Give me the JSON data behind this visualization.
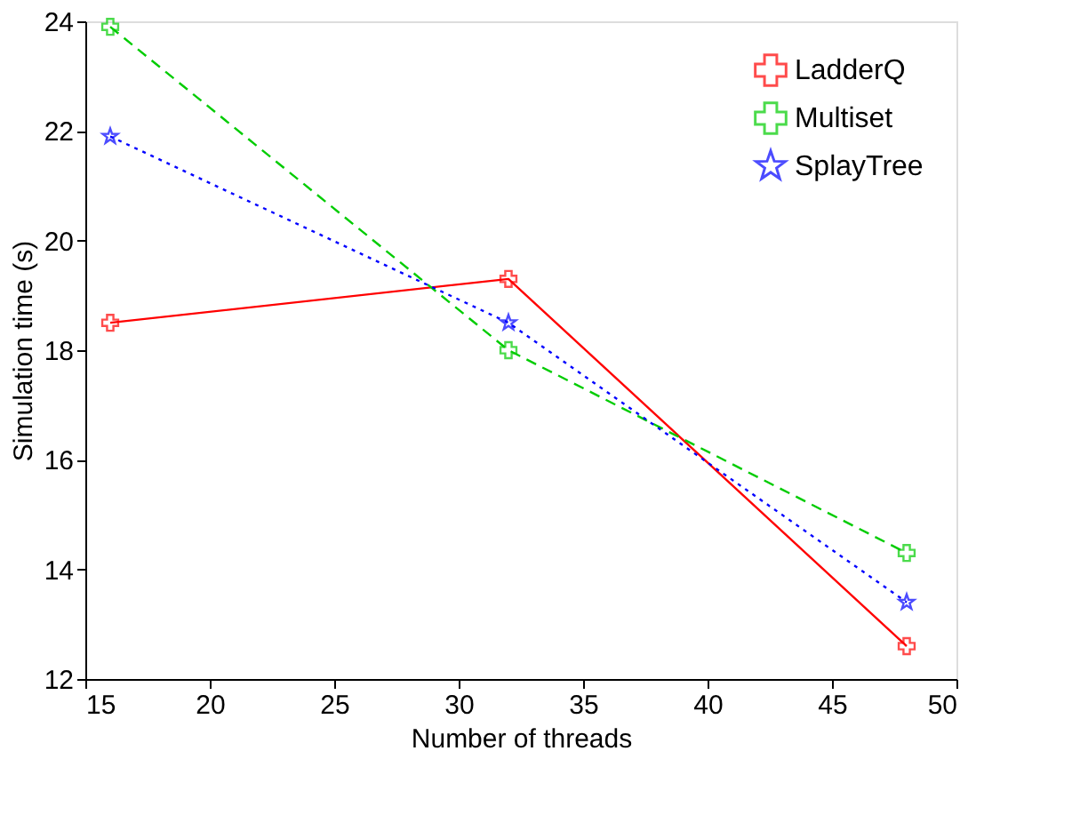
{
  "chart_data": {
    "type": "line",
    "xlabel": "Number of threads",
    "ylabel": "Simulation time (s)",
    "x": [
      16,
      32,
      48
    ],
    "series": [
      {
        "name": "LadderQ",
        "color": "#ff0000",
        "values": [
          18.5,
          19.3,
          12.6
        ],
        "marker": "cross",
        "line_style": "solid"
      },
      {
        "name": "Multiset",
        "color": "#00cc00",
        "values": [
          23.9,
          18.0,
          14.3
        ],
        "marker": "cross",
        "line_style": "dashed"
      },
      {
        "name": "SplayTree",
        "color": "#0000ff",
        "values": [
          21.9,
          18.5,
          13.4
        ],
        "marker": "star",
        "line_style": "dotted"
      }
    ],
    "xlim": [
      15,
      50
    ],
    "xticks": [
      15,
      20,
      25,
      30,
      35,
      40,
      45,
      50
    ],
    "ylim": [
      12,
      24
    ],
    "yticks": [
      12,
      14,
      16,
      18,
      20,
      22,
      24
    ],
    "grid": false,
    "legend": "top right"
  }
}
